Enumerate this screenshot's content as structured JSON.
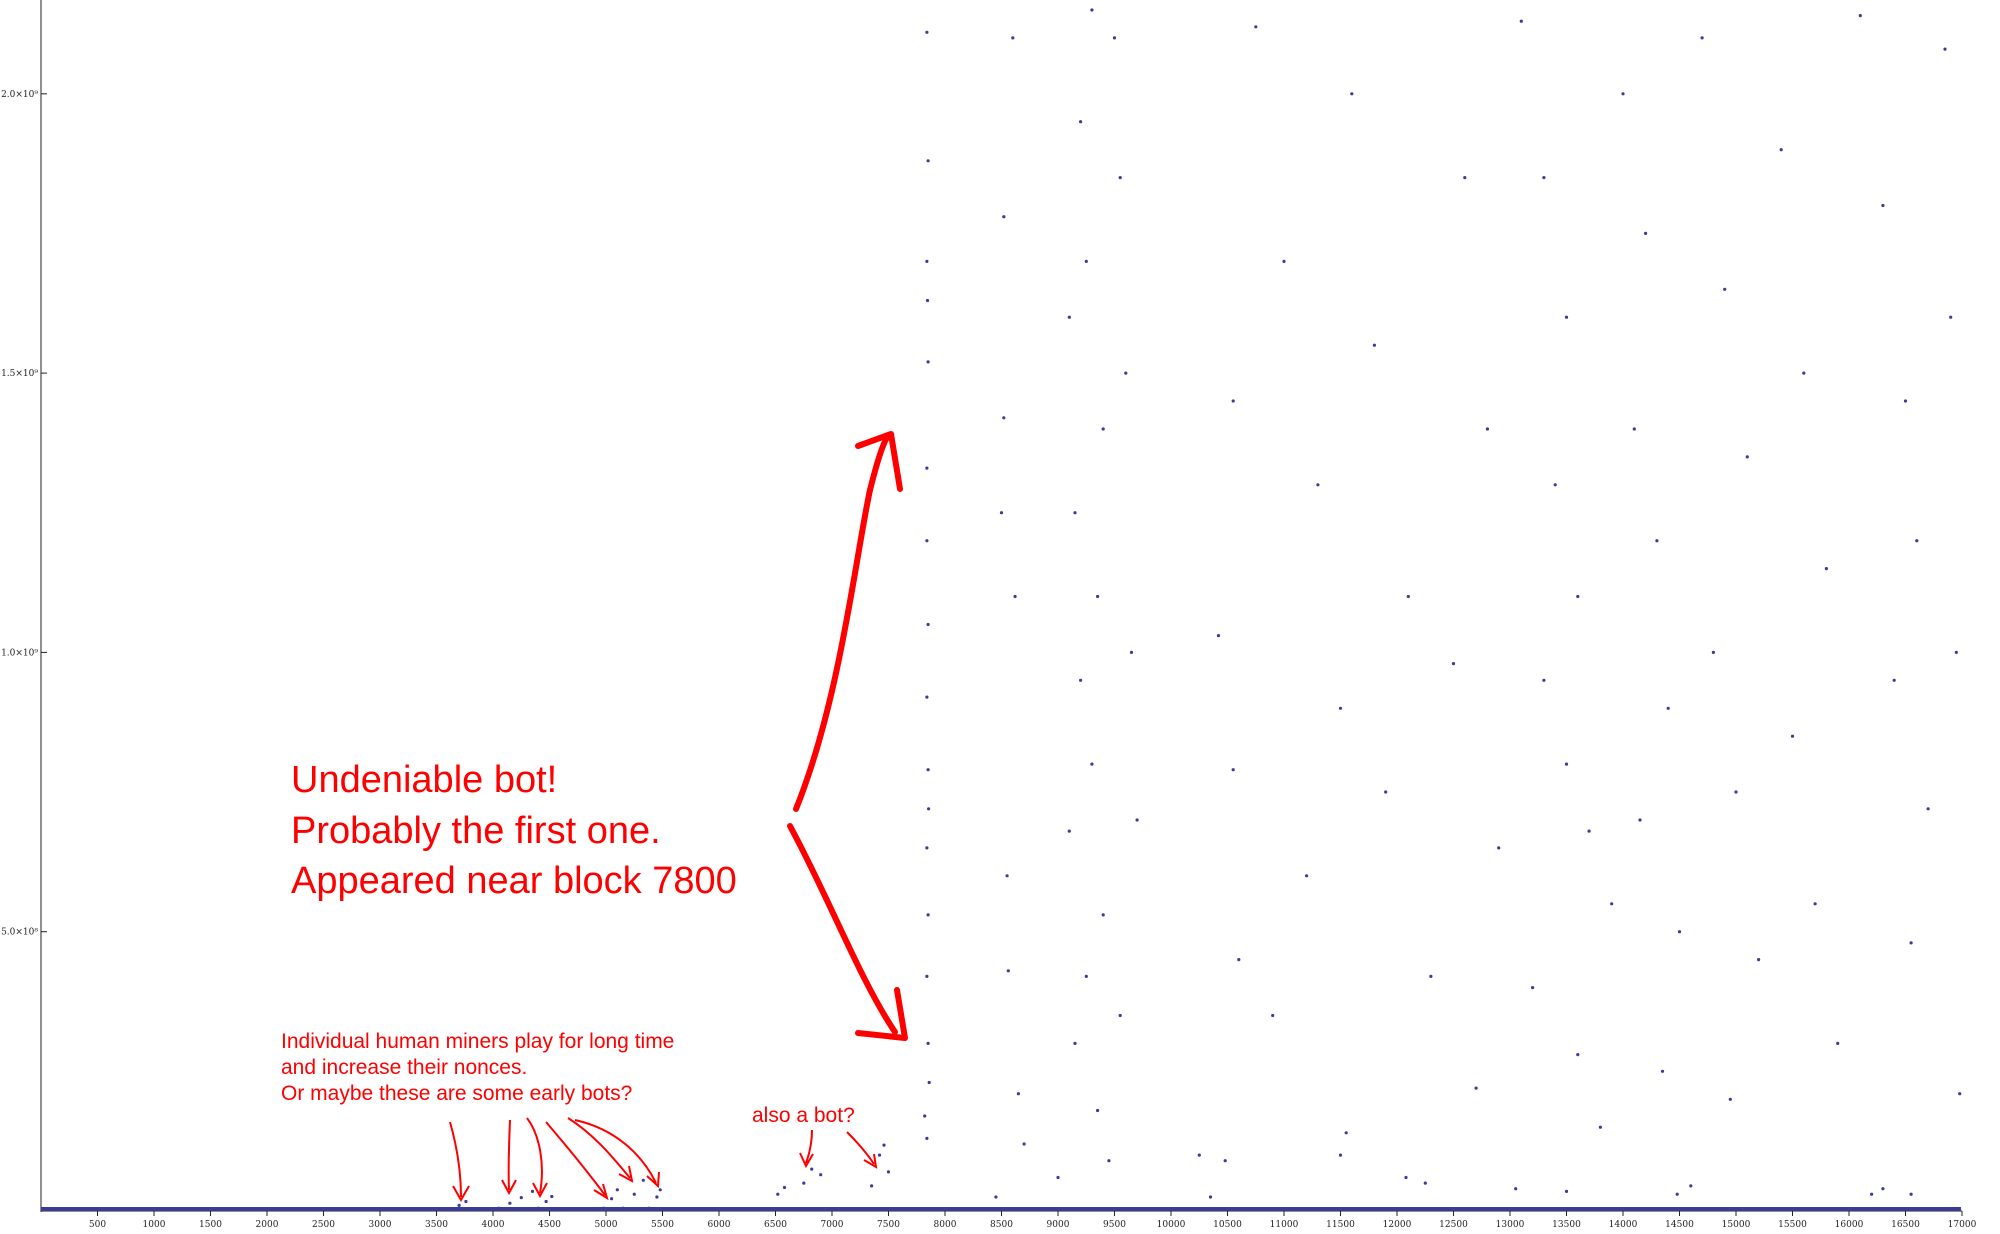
{
  "chart_data": {
    "type": "scatter",
    "title": "",
    "xlabel": "",
    "ylabel": "",
    "xlim": [
      0,
      17000
    ],
    "ylim": [
      0,
      2150000000
    ],
    "grid": false,
    "point_color": "#3b3c98",
    "annotation_color": "#ff0000",
    "x_ticks": [
      500,
      1000,
      1500,
      2000,
      2500,
      3000,
      3500,
      4000,
      4500,
      5000,
      5500,
      6000,
      6500,
      7000,
      7500,
      8000,
      8500,
      9000,
      9500,
      10000,
      10500,
      11000,
      11500,
      12000,
      12500,
      13000,
      13500,
      14000,
      14500,
      15000,
      15500,
      16000,
      16500,
      17000
    ],
    "x_tick_labels": [
      "500",
      "1000",
      "1500",
      "2000",
      "2500",
      "3000",
      "3500",
      "4000",
      "4500",
      "5000",
      "5500",
      "6000",
      "6500",
      "7000",
      "7500",
      "8000",
      "8500",
      "9000",
      "9500",
      "10000",
      "10500",
      "11000",
      "11500",
      "12000",
      "12500",
      "13000",
      "13500",
      "14000",
      "14500",
      "15000",
      "15500",
      "16000",
      "16500",
      "17000"
    ],
    "y_ticks": [
      500000000,
      1000000000,
      1500000000,
      2000000000
    ],
    "y_tick_labels": [
      "5.0×10⁸",
      "1.0×10⁹",
      "1.5×10⁹",
      "2.0×10⁹"
    ],
    "series": [
      {
        "points": [
          [
            3650,
            4000000
          ],
          [
            3700,
            10000000
          ],
          [
            3760,
            17000000
          ],
          [
            4050,
            5000000
          ],
          [
            4150,
            14000000
          ],
          [
            4250,
            24000000
          ],
          [
            4350,
            35000000
          ],
          [
            4400,
            5000000
          ],
          [
            4470,
            17000000
          ],
          [
            4520,
            26000000
          ],
          [
            4980,
            5000000
          ],
          [
            5050,
            22000000
          ],
          [
            5100,
            38000000
          ],
          [
            5150,
            5000000
          ],
          [
            5250,
            30000000
          ],
          [
            5330,
            55000000
          ],
          [
            5380,
            5000000
          ],
          [
            5450,
            25000000
          ],
          [
            5480,
            38000000
          ],
          [
            6520,
            30000000
          ],
          [
            6580,
            42000000
          ],
          [
            6750,
            50000000
          ],
          [
            6820,
            75000000
          ],
          [
            6900,
            65000000
          ],
          [
            7350,
            45000000
          ],
          [
            7420,
            100000000
          ],
          [
            7460,
            118000000
          ],
          [
            7500,
            70000000
          ],
          [
            7820,
            170000000
          ],
          [
            7840,
            130000000
          ],
          [
            7860,
            230000000
          ],
          [
            7840,
            2110000000
          ],
          [
            7850,
            1880000000
          ],
          [
            7840,
            1700000000
          ],
          [
            7850,
            1520000000
          ],
          [
            7840,
            1330000000
          ],
          [
            7840,
            1200000000
          ],
          [
            7850,
            1050000000
          ],
          [
            7840,
            920000000
          ],
          [
            7850,
            790000000
          ],
          [
            7840,
            650000000
          ],
          [
            7850,
            530000000
          ],
          [
            7840,
            420000000
          ],
          [
            7850,
            300000000
          ],
          [
            7855,
            720000000
          ],
          [
            7845,
            1630000000
          ],
          [
            8600,
            2100000000
          ],
          [
            8520,
            1780000000
          ],
          [
            8520,
            1420000000
          ],
          [
            8500,
            1250000000
          ],
          [
            8620,
            1100000000
          ],
          [
            8550,
            600000000
          ],
          [
            8560,
            430000000
          ],
          [
            8650,
            210000000
          ],
          [
            9300,
            2150000000
          ],
          [
            9200,
            1950000000
          ],
          [
            9250,
            1700000000
          ],
          [
            9100,
            1600000000
          ],
          [
            9400,
            1400000000
          ],
          [
            9150,
            1250000000
          ],
          [
            9350,
            1100000000
          ],
          [
            9200,
            950000000
          ],
          [
            9300,
            800000000
          ],
          [
            9100,
            680000000
          ],
          [
            9400,
            530000000
          ],
          [
            9250,
            420000000
          ],
          [
            9150,
            300000000
          ],
          [
            9350,
            180000000
          ],
          [
            9450,
            90000000
          ],
          [
            9500,
            2100000000
          ],
          [
            9550,
            1850000000
          ],
          [
            9600,
            1500000000
          ],
          [
            9650,
            1000000000
          ],
          [
            9700,
            700000000
          ],
          [
            9550,
            350000000
          ],
          [
            10550,
            1450000000
          ],
          [
            10420,
            1030000000
          ],
          [
            10550,
            790000000
          ],
          [
            10600,
            450000000
          ],
          [
            10750,
            2120000000
          ],
          [
            11000,
            1700000000
          ],
          [
            11300,
            1300000000
          ],
          [
            11500,
            900000000
          ],
          [
            11200,
            600000000
          ],
          [
            10900,
            350000000
          ],
          [
            11600,
            2000000000
          ],
          [
            11800,
            1550000000
          ],
          [
            12100,
            1100000000
          ],
          [
            11900,
            750000000
          ],
          [
            12300,
            420000000
          ],
          [
            12600,
            1850000000
          ],
          [
            12800,
            1400000000
          ],
          [
            12500,
            980000000
          ],
          [
            12900,
            650000000
          ],
          [
            12700,
            220000000
          ],
          [
            13100,
            2130000000
          ],
          [
            13300,
            1850000000
          ],
          [
            13500,
            1600000000
          ],
          [
            13400,
            1300000000
          ],
          [
            13600,
            1100000000
          ],
          [
            13300,
            950000000
          ],
          [
            13500,
            800000000
          ],
          [
            13700,
            680000000
          ],
          [
            13900,
            550000000
          ],
          [
            13200,
            400000000
          ],
          [
            13600,
            280000000
          ],
          [
            13800,
            150000000
          ],
          [
            14000,
            2000000000
          ],
          [
            14200,
            1750000000
          ],
          [
            14100,
            1400000000
          ],
          [
            14300,
            1200000000
          ],
          [
            14400,
            900000000
          ],
          [
            14150,
            700000000
          ],
          [
            14500,
            500000000
          ],
          [
            14350,
            250000000
          ],
          [
            14700,
            2100000000
          ],
          [
            14900,
            1650000000
          ],
          [
            15100,
            1350000000
          ],
          [
            14800,
            1000000000
          ],
          [
            15000,
            750000000
          ],
          [
            15200,
            450000000
          ],
          [
            14950,
            200000000
          ],
          [
            15400,
            1900000000
          ],
          [
            15600,
            1500000000
          ],
          [
            15800,
            1150000000
          ],
          [
            15500,
            850000000
          ],
          [
            15700,
            550000000
          ],
          [
            15900,
            300000000
          ],
          [
            16100,
            2140000000
          ],
          [
            16300,
            1800000000
          ],
          [
            16500,
            1450000000
          ],
          [
            16600,
            1200000000
          ],
          [
            16400,
            950000000
          ],
          [
            16700,
            720000000
          ],
          [
            16550,
            480000000
          ],
          [
            16850,
            2080000000
          ],
          [
            16900,
            1600000000
          ],
          [
            16950,
            1000000000
          ],
          [
            16980,
            210000000
          ],
          [
            11550,
            140000000
          ],
          [
            11500,
            100000000
          ],
          [
            12080,
            60000000
          ],
          [
            12250,
            50000000
          ],
          [
            13050,
            40000000
          ],
          [
            13500,
            35000000
          ],
          [
            14480,
            30000000
          ],
          [
            14600,
            45000000
          ],
          [
            16200,
            30000000
          ],
          [
            16300,
            40000000
          ],
          [
            16550,
            30000000
          ],
          [
            8700,
            120000000
          ],
          [
            8450,
            25000000
          ],
          [
            9000,
            60000000
          ],
          [
            10250,
            100000000
          ],
          [
            10480,
            90000000
          ],
          [
            10350,
            25000000
          ]
        ]
      }
    ],
    "annotations": [
      {
        "lines": [
          "Undeniable bot!",
          "Probably the first one.",
          "Appeared near block 7800"
        ]
      },
      {
        "lines": [
          "Individual human miners play for long time",
          "and increase their nonces.",
          "Or maybe these are some early bots?"
        ]
      },
      {
        "lines": [
          "also a bot?"
        ]
      }
    ]
  }
}
